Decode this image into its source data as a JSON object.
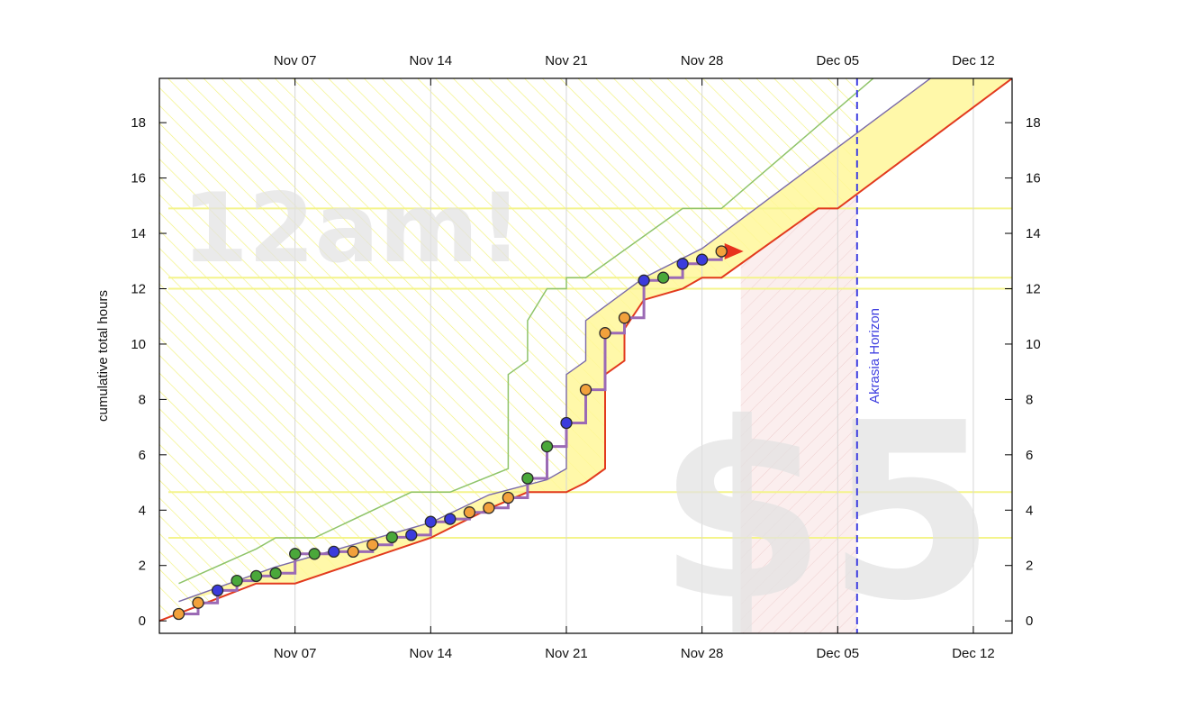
{
  "chart_data": {
    "type": "line",
    "ylabel": "cumulative total hours",
    "x_ticks": [
      "Nov 07",
      "Nov 14",
      "Nov 21",
      "Nov 28",
      "Dec 05",
      "Dec 12"
    ],
    "y_ticks": [
      "0",
      "2",
      "4",
      "6",
      "8",
      "10",
      "12",
      "14",
      "16",
      "18"
    ],
    "x_range": [
      "Oct 31",
      "Dec 14"
    ],
    "ylim": [
      -0.45,
      19.6
    ],
    "grid": true,
    "watermark_left": "12am!",
    "watermark_right": "$5",
    "horizon": {
      "date": "Dec 06",
      "label": "Akrasia Horizon",
      "color": "#4040e0"
    },
    "datapoints": [
      {
        "date": "Nov 01",
        "value": 0.25,
        "color": "orange"
      },
      {
        "date": "Nov 02",
        "value": 0.65,
        "color": "orange"
      },
      {
        "date": "Nov 03",
        "value": 1.1,
        "color": "blue"
      },
      {
        "date": "Nov 04",
        "value": 1.45,
        "color": "green"
      },
      {
        "date": "Nov 05",
        "value": 1.62,
        "color": "green"
      },
      {
        "date": "Nov 06",
        "value": 1.72,
        "color": "green"
      },
      {
        "date": "Nov 07",
        "value": 2.42,
        "color": "green"
      },
      {
        "date": "Nov 08",
        "value": 2.42,
        "color": "green"
      },
      {
        "date": "Nov 09",
        "value": 2.5,
        "color": "blue"
      },
      {
        "date": "Nov 10",
        "value": 2.5,
        "color": "orange"
      },
      {
        "date": "Nov 11",
        "value": 2.75,
        "color": "orange"
      },
      {
        "date": "Nov 12",
        "value": 3.02,
        "color": "green"
      },
      {
        "date": "Nov 13",
        "value": 3.1,
        "color": "blue"
      },
      {
        "date": "Nov 14",
        "value": 3.58,
        "color": "blue"
      },
      {
        "date": "Nov 15",
        "value": 3.68,
        "color": "blue"
      },
      {
        "date": "Nov 16",
        "value": 3.92,
        "color": "orange"
      },
      {
        "date": "Nov 17",
        "value": 4.08,
        "color": "orange"
      },
      {
        "date": "Nov 18",
        "value": 4.45,
        "color": "orange"
      },
      {
        "date": "Nov 19",
        "value": 5.15,
        "color": "green"
      },
      {
        "date": "Nov 20",
        "value": 6.3,
        "color": "green"
      },
      {
        "date": "Nov 21",
        "value": 7.15,
        "color": "blue"
      },
      {
        "date": "Nov 22",
        "value": 8.35,
        "color": "orange"
      },
      {
        "date": "Nov 23",
        "value": 10.4,
        "color": "orange"
      },
      {
        "date": "Nov 24",
        "value": 10.95,
        "color": "orange"
      },
      {
        "date": "Nov 25",
        "value": 12.3,
        "color": "blue"
      },
      {
        "date": "Nov 26",
        "value": 12.4,
        "color": "green"
      },
      {
        "date": "Nov 27",
        "value": 12.9,
        "color": "blue"
      },
      {
        "date": "Nov 28",
        "value": 13.05,
        "color": "blue"
      },
      {
        "date": "Nov 29",
        "value": 13.35,
        "color": "orange"
      }
    ],
    "bright_red_line": [
      {
        "date": "Oct 31",
        "value": 0.0
      },
      {
        "date": "Nov 05",
        "value": 1.35
      },
      {
        "date": "Nov 07",
        "value": 1.35
      },
      {
        "date": "Nov 14",
        "value": 3.0
      },
      {
        "date": "Nov 17",
        "value": 4.05
      },
      {
        "date": "Nov 19",
        "value": 4.65
      },
      {
        "date": "Nov 21",
        "value": 4.65
      },
      {
        "date": "Nov 22",
        "value": 5.0
      },
      {
        "date": "Nov 23",
        "value": 5.5
      },
      {
        "date": "Nov 23",
        "value": 8.9
      },
      {
        "date": "Nov 24",
        "value": 9.4
      },
      {
        "date": "Nov 24",
        "value": 10.55
      },
      {
        "date": "Nov 25",
        "value": 11.6
      },
      {
        "date": "Nov 27",
        "value": 12.0
      },
      {
        "date": "Nov 28",
        "value": 12.4
      },
      {
        "date": "Nov 29",
        "value": 12.4
      },
      {
        "date": "Dec 04",
        "value": 14.9
      },
      {
        "date": "Dec 05",
        "value": 14.9
      },
      {
        "date": "Dec 14",
        "value": 19.6
      }
    ],
    "upper_band_line": [
      {
        "date": "Nov 01",
        "value": 0.7
      },
      {
        "date": "Nov 06",
        "value": 1.95
      },
      {
        "date": "Nov 14",
        "value": 3.55
      },
      {
        "date": "Nov 17",
        "value": 4.55
      },
      {
        "date": "Nov 20",
        "value": 5.1
      },
      {
        "date": "Nov 21",
        "value": 5.5
      },
      {
        "date": "Nov 21",
        "value": 8.9
      },
      {
        "date": "Nov 22",
        "value": 9.4
      },
      {
        "date": "Nov 22",
        "value": 10.85
      },
      {
        "date": "Nov 25",
        "value": 12.4
      },
      {
        "date": "Nov 28",
        "value": 13.45
      },
      {
        "date": "Dec 14",
        "value": 21.8
      }
    ],
    "green_road_line": [
      {
        "date": "Nov 01",
        "value": 1.35
      },
      {
        "date": "Nov 05",
        "value": 2.6
      },
      {
        "date": "Nov 06",
        "value": 3.0
      },
      {
        "date": "Nov 08",
        "value": 3.0
      },
      {
        "date": "Nov 13",
        "value": 4.65
      },
      {
        "date": "Nov 15",
        "value": 4.65
      },
      {
        "date": "Nov 18",
        "value": 5.5
      },
      {
        "date": "Nov 18",
        "value": 8.9
      },
      {
        "date": "Nov 19",
        "value": 9.4
      },
      {
        "date": "Nov 19",
        "value": 10.85
      },
      {
        "date": "Nov 20",
        "value": 12.0
      },
      {
        "date": "Nov 21",
        "value": 12.0
      },
      {
        "date": "Nov 21",
        "value": 12.4
      },
      {
        "date": "Nov 22",
        "value": 12.4
      },
      {
        "date": "Nov 27",
        "value": 14.9
      },
      {
        "date": "Nov 29",
        "value": 14.9
      },
      {
        "date": "Dec 14",
        "value": 23.9
      }
    ],
    "yellow_guide_lines": [
      14.9,
      12.4,
      12.0,
      4.65,
      3.0
    ],
    "arrow_tip": {
      "date": "Nov 30",
      "value": 13.35
    }
  }
}
